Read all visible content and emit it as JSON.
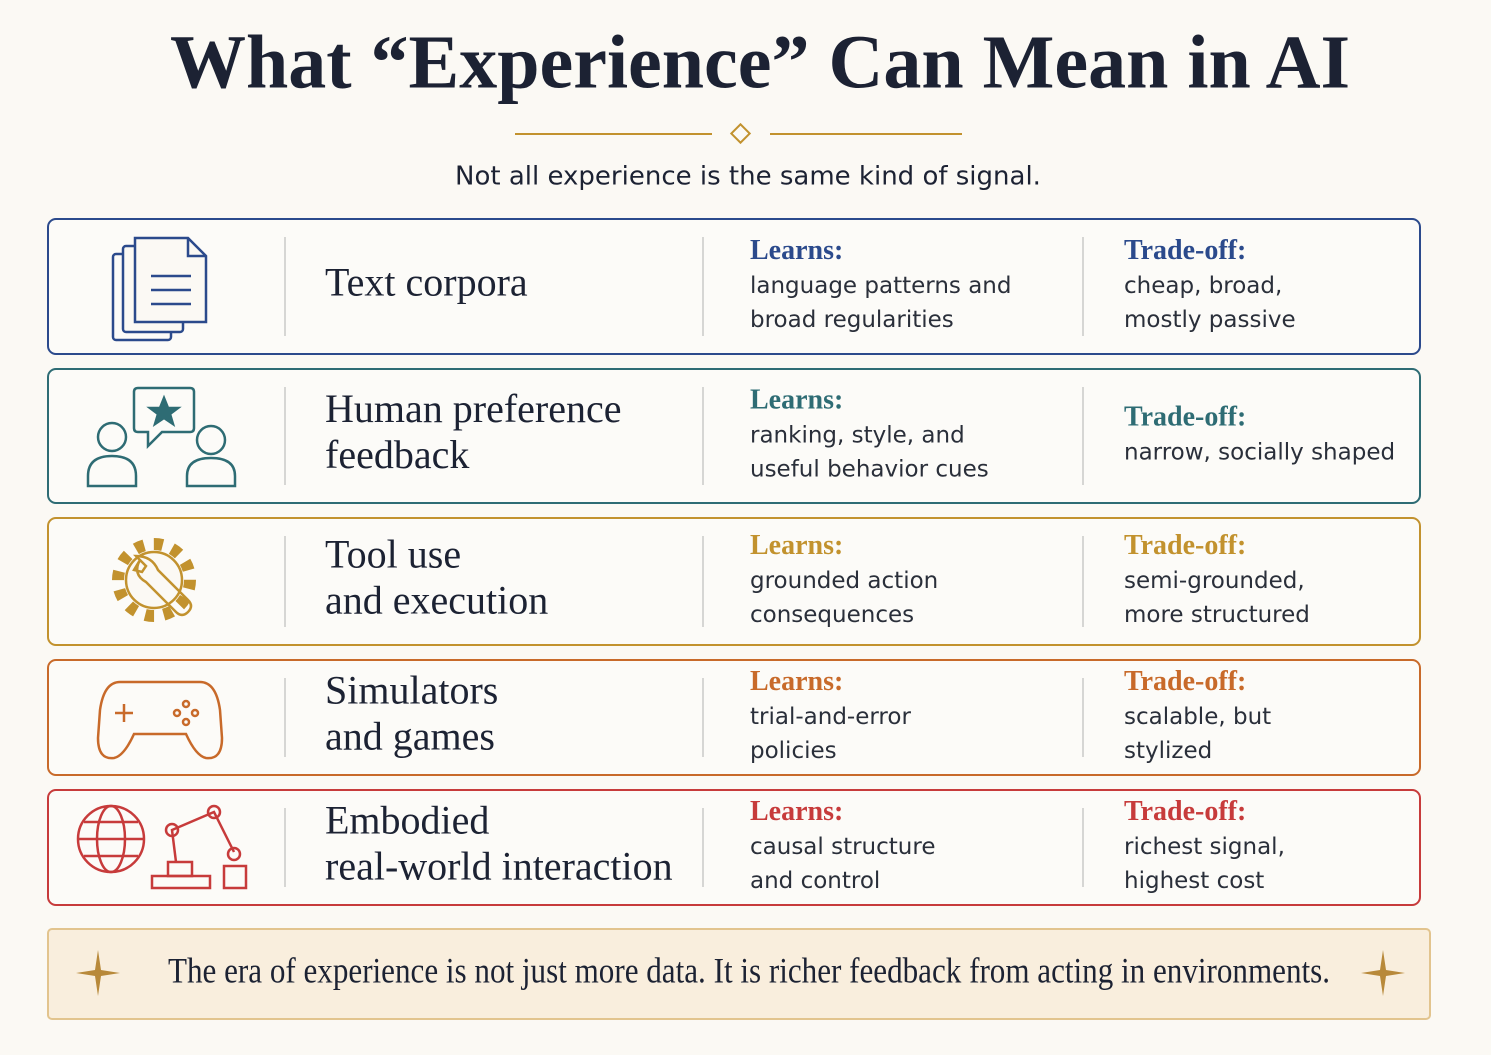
{
  "title": "What “Experience” Can Mean in AI",
  "subtitle": "Not all experience is the same kind of signal.",
  "rows": [
    {
      "color": "#2b4a8c",
      "label": [
        "Text corpora"
      ],
      "learns_label": "Learns:",
      "learns": [
        "language patterns and",
        "broad regularities"
      ],
      "tradeoff_label": "Trade-off:",
      "tradeoff": [
        "cheap, broad,",
        "mostly passive"
      ]
    },
    {
      "color": "#2e6c74",
      "label": [
        "Human preference",
        "feedback"
      ],
      "learns_label": "Learns:",
      "learns": [
        "ranking, style, and",
        "useful behavior cues"
      ],
      "tradeoff_label": "Trade-off:",
      "tradeoff": [
        "narrow, socially shaped"
      ]
    },
    {
      "color": "#c2922e",
      "label": [
        "Tool use",
        "and execution"
      ],
      "learns_label": "Learns:",
      "learns": [
        "grounded action",
        "consequences"
      ],
      "tradeoff_label": "Trade-off:",
      "tradeoff": [
        "semi-grounded,",
        "more structured"
      ]
    },
    {
      "color": "#c86a2a",
      "label": [
        "Simulators",
        "and games"
      ],
      "learns_label": "Learns:",
      "learns": [
        "trial-and-error",
        "policies"
      ],
      "tradeoff_label": "Trade-off:",
      "tradeoff": [
        "scalable, but",
        "stylized"
      ]
    },
    {
      "color": "#c73b3b",
      "label": [
        "Embodied",
        "real-world interaction"
      ],
      "learns_label": "Learns:",
      "learns": [
        "causal structure",
        "and control"
      ],
      "tradeoff_label": "Trade-off:",
      "tradeoff": [
        "richest signal,",
        "highest cost"
      ]
    }
  ],
  "footer": "The era of experience is not just more data. It is richer feedback from acting in environments."
}
